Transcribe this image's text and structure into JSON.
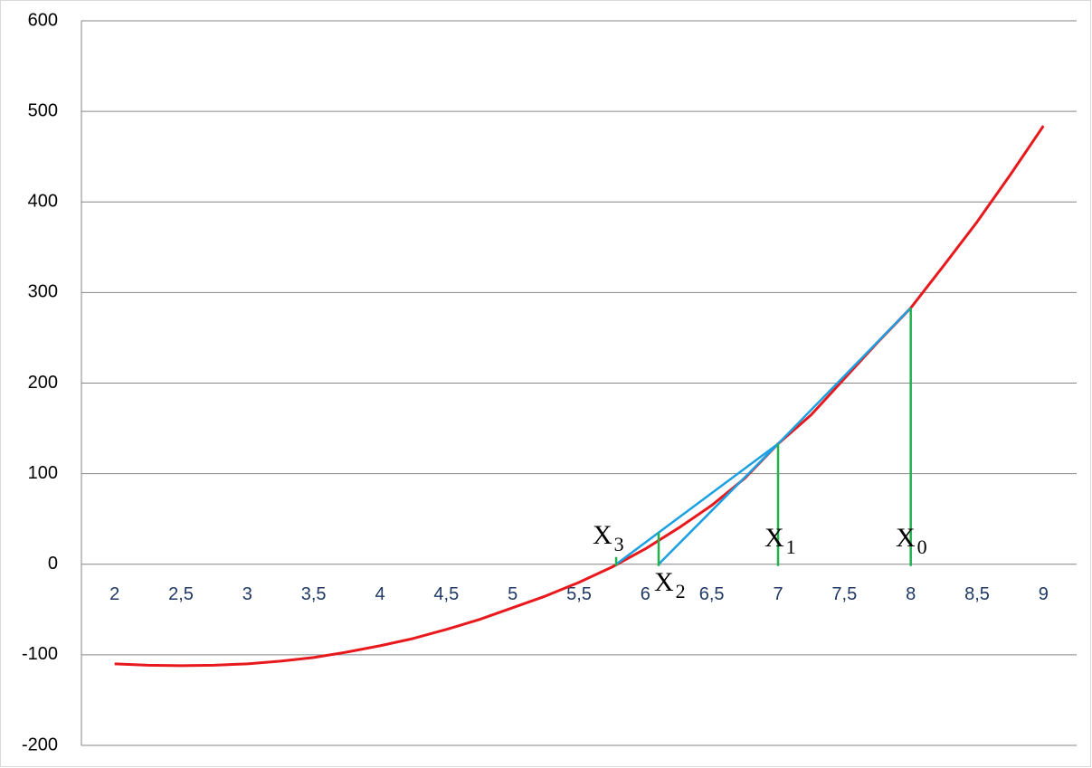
{
  "chart_data": {
    "type": "line",
    "xlim": [
      1.75,
      9.25
    ],
    "xticks": [
      2,
      {
        "value": 2.5,
        "label": "2,5"
      },
      3,
      {
        "value": 3.5,
        "label": "3,5"
      },
      4,
      {
        "value": 4.5,
        "label": "4,5"
      },
      5,
      {
        "value": 5.5,
        "label": "5,5"
      },
      6,
      {
        "value": 6.5,
        "label": "6,5"
      },
      7,
      {
        "value": 7.5,
        "label": "7,5"
      },
      8,
      {
        "value": 8.5,
        "label": "8,5"
      },
      9
    ],
    "ylim": [
      -200,
      600
    ],
    "yticks": [
      -200,
      -100,
      0,
      100,
      200,
      300,
      400,
      500,
      600
    ],
    "grid": true,
    "series": [
      {
        "color": "#e8191c",
        "x": [
          2,
          2.25,
          2.5,
          2.75,
          3,
          3.25,
          3.5,
          3.75,
          4,
          4.25,
          4.5,
          4.75,
          5,
          5.25,
          5.5,
          5.75,
          6,
          6.25,
          6.5,
          6.75,
          7,
          7.25,
          7.5,
          7.75,
          8,
          8.25,
          8.5,
          8.75,
          9
        ],
        "values": [
          -110,
          -111.5,
          -112,
          -111.5,
          -110,
          -107,
          -103,
          -97,
          -90,
          -82,
          -72,
          -61,
          -48,
          -35,
          -20,
          -3,
          17,
          40,
          65,
          95,
          133,
          165,
          205,
          245,
          283,
          330,
          378,
          430,
          484
        ]
      },
      {
        "color": "#1ba1e2",
        "x": [
          8,
          7,
          6.1,
          null,
          7,
          6.1,
          5.78
        ],
        "values": [
          283,
          133,
          0,
          null,
          133,
          35,
          0
        ]
      },
      {
        "color": "#22b14c",
        "x": [
          8,
          8,
          null,
          7,
          7,
          null,
          6.1,
          6.1,
          null,
          5.78,
          5.78
        ],
        "values": [
          283,
          -2,
          null,
          133,
          -2,
          null,
          35,
          -2,
          null,
          8,
          -2
        ]
      }
    ],
    "annotations": [
      {
        "text": "X",
        "sub": "0"
      },
      {
        "text": "X",
        "sub": "1"
      },
      {
        "text": "X",
        "sub": "2"
      },
      {
        "text": "X",
        "sub": "3"
      }
    ]
  }
}
